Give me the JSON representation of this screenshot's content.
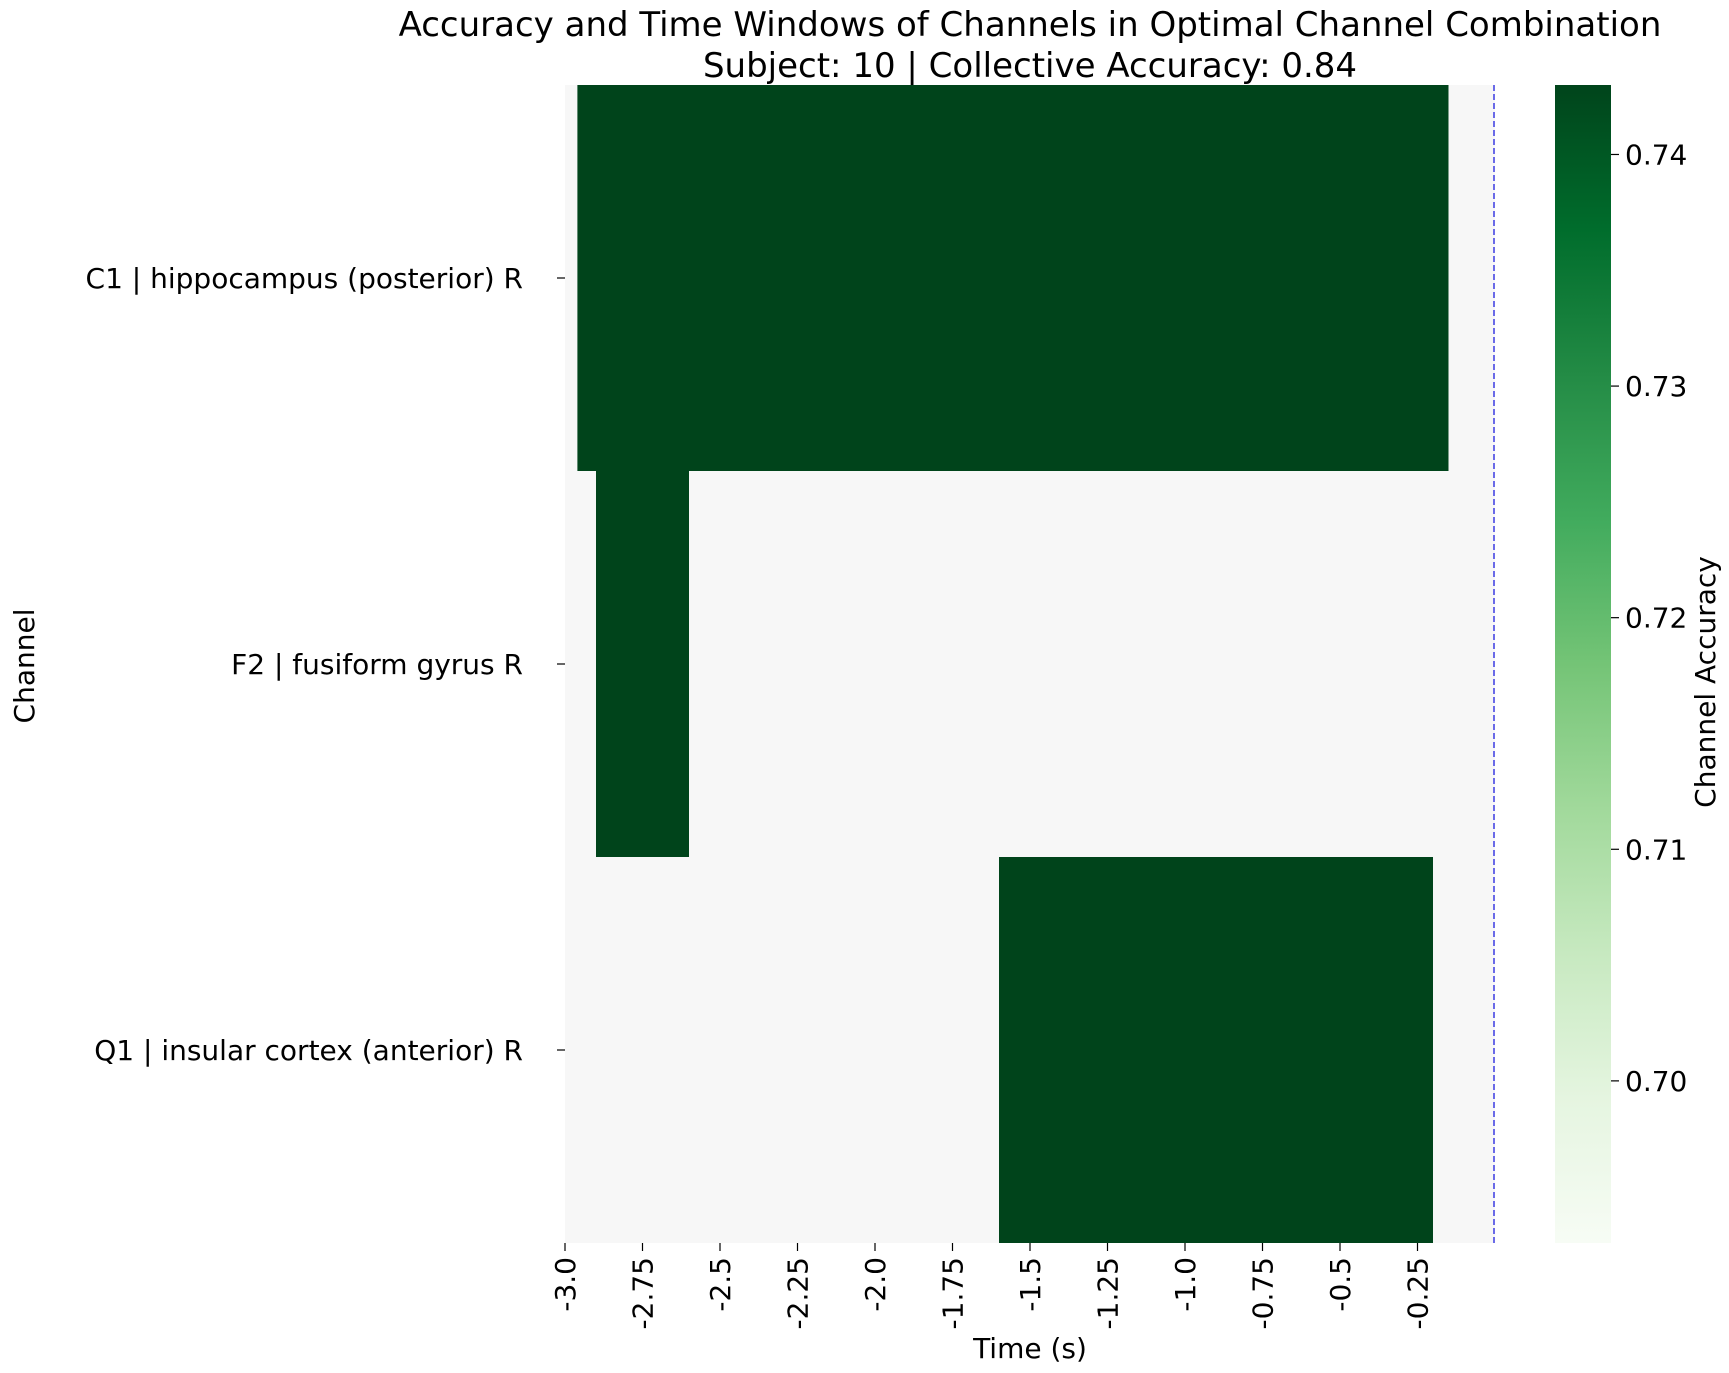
{
  "chart_data": {
    "type": "heatmap",
    "title_line1": "Accuracy and Time Windows of Channels in Optimal Channel Combination",
    "title_line2": "Subject: 10 | Collective Accuracy: 0.84",
    "xlabel": "Time (s)",
    "ylabel": "Channel",
    "xlim": [
      -3.0,
      0.0
    ],
    "x_ticks": [
      -3.0,
      -2.75,
      -2.5,
      -2.25,
      -2.0,
      -1.75,
      -1.5,
      -1.25,
      -1.0,
      -0.75,
      -0.5,
      -0.25
    ],
    "x_tick_labels": [
      "-3.0",
      "-2.75",
      "-2.5",
      "-2.25",
      "-2.0",
      "-1.75",
      "-1.5",
      "-1.25",
      "-1.0",
      "-0.75",
      "-0.5",
      "-0.25"
    ],
    "channels": [
      "C1 | hippocampus (posterior) R",
      "F2 | fusiform gyrus R",
      "Q1 | insular cortex (anterior) R"
    ],
    "windows": [
      {
        "channel": 0,
        "start": -2.96,
        "end": -0.15,
        "accuracy": 0.743
      },
      {
        "channel": 1,
        "start": -2.9,
        "end": -2.6,
        "accuracy": 0.743
      },
      {
        "channel": 2,
        "start": -1.6,
        "end": -0.2,
        "accuracy": 0.743
      }
    ],
    "reference_line_x": 0.0,
    "background_color": "#f7f7f7",
    "colorbar": {
      "label": "Channel Accuracy",
      "range": [
        0.693,
        0.743
      ],
      "ticks": [
        0.7,
        0.71,
        0.72,
        0.73,
        0.74
      ],
      "tick_labels": [
        "0.70",
        "0.71",
        "0.72",
        "0.73",
        "0.74"
      ],
      "colors": [
        "#f7fcf5",
        "#e5f5e0",
        "#c7e9c0",
        "#a1d99b",
        "#74c476",
        "#41ab5d",
        "#238b45",
        "#006d2c",
        "#00441b"
      ]
    }
  }
}
